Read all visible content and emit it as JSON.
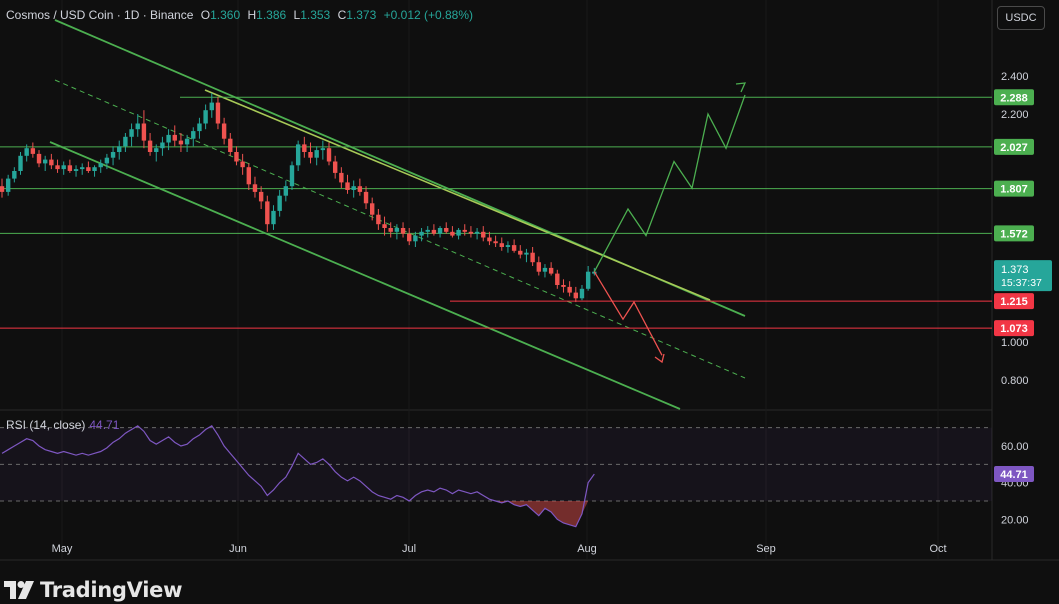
{
  "header": {
    "symbol": "Cosmos / USD Coin · 1D · Binance",
    "open_label": "O",
    "open": "1.360",
    "high_label": "H",
    "high": "1.386",
    "low_label": "L",
    "low": "1.353",
    "close_label": "C",
    "close": "1.373",
    "change": "+0.012 (+0.88%)",
    "currency": "USDC"
  },
  "rsi": {
    "label": "RSI (14, close)",
    "value": "44.71",
    "ticks": [
      "60.00",
      "40.00",
      "20.00"
    ],
    "badge": "44.71"
  },
  "brand": {
    "name": "TradingView"
  },
  "colors": {
    "background": "#0f0f0f",
    "up": "#26a69a",
    "down": "#ef5350",
    "support_line": "#f23645",
    "resistance_line": "#4caf50",
    "channel": "#4caf50",
    "rsi_line": "#7e57c2"
  },
  "chart_data": {
    "type": "candlestick",
    "ylim": [
      0.7,
      2.5
    ],
    "y_ticks": [
      "2.400",
      "2.200",
      "1.000",
      "0.800"
    ],
    "x_ticks": [
      "May",
      "Jun",
      "Jul",
      "Aug",
      "Sep",
      "Oct"
    ],
    "price_badge": {
      "value": "1.373",
      "countdown": "15:37:37"
    },
    "horizontal_levels": [
      {
        "value": 2.288,
        "label": "2.288",
        "kind": "resistance"
      },
      {
        "value": 2.027,
        "label": "2.027",
        "kind": "resistance"
      },
      {
        "value": 1.807,
        "label": "1.807",
        "kind": "resistance"
      },
      {
        "value": 1.572,
        "label": "1.572",
        "kind": "resistance"
      },
      {
        "value": 1.215,
        "label": "1.215",
        "kind": "support"
      },
      {
        "value": 1.073,
        "label": "1.073",
        "kind": "support"
      }
    ],
    "candles_ohlc": [
      [
        1.82,
        1.86,
        1.76,
        1.79
      ],
      [
        1.79,
        1.88,
        1.77,
        1.86
      ],
      [
        1.86,
        1.92,
        1.84,
        1.9
      ],
      [
        1.9,
        2.0,
        1.88,
        1.98
      ],
      [
        1.98,
        2.04,
        1.95,
        2.02
      ],
      [
        2.02,
        2.05,
        1.97,
        1.99
      ],
      [
        1.99,
        2.01,
        1.92,
        1.94
      ],
      [
        1.94,
        1.98,
        1.9,
        1.96
      ],
      [
        1.96,
        1.99,
        1.91,
        1.93
      ],
      [
        1.93,
        1.96,
        1.89,
        1.91
      ],
      [
        1.91,
        1.95,
        1.88,
        1.93
      ],
      [
        1.93,
        1.96,
        1.89,
        1.9
      ],
      [
        1.9,
        1.93,
        1.87,
        1.91
      ],
      [
        1.91,
        1.94,
        1.88,
        1.92
      ],
      [
        1.92,
        1.95,
        1.89,
        1.9
      ],
      [
        1.9,
        1.93,
        1.87,
        1.92
      ],
      [
        1.92,
        1.96,
        1.89,
        1.94
      ],
      [
        1.94,
        1.99,
        1.91,
        1.97
      ],
      [
        1.97,
        2.03,
        1.93,
        2.0
      ],
      [
        2.0,
        2.06,
        1.96,
        2.03
      ],
      [
        2.03,
        2.1,
        2.0,
        2.08
      ],
      [
        2.08,
        2.15,
        2.03,
        2.12
      ],
      [
        2.12,
        2.2,
        2.08,
        2.15
      ],
      [
        2.15,
        2.22,
        2.02,
        2.06
      ],
      [
        2.06,
        2.1,
        1.98,
        2.0
      ],
      [
        2.0,
        2.04,
        1.95,
        2.02
      ],
      [
        2.02,
        2.08,
        1.98,
        2.05
      ],
      [
        2.05,
        2.12,
        2.01,
        2.09
      ],
      [
        2.09,
        2.14,
        2.03,
        2.06
      ],
      [
        2.06,
        2.1,
        2.0,
        2.04
      ],
      [
        2.04,
        2.09,
        2.0,
        2.07
      ],
      [
        2.07,
        2.13,
        2.03,
        2.11
      ],
      [
        2.11,
        2.18,
        2.07,
        2.15
      ],
      [
        2.15,
        2.25,
        2.12,
        2.22
      ],
      [
        2.22,
        2.31,
        2.18,
        2.26
      ],
      [
        2.26,
        2.29,
        2.12,
        2.15
      ],
      [
        2.15,
        2.18,
        2.04,
        2.07
      ],
      [
        2.07,
        2.1,
        1.98,
        2.0
      ],
      [
        2.0,
        2.03,
        1.93,
        1.95
      ],
      [
        1.95,
        1.99,
        1.88,
        1.92
      ],
      [
        1.92,
        1.94,
        1.8,
        1.83
      ],
      [
        1.83,
        1.87,
        1.76,
        1.79
      ],
      [
        1.79,
        1.82,
        1.7,
        1.74
      ],
      [
        1.74,
        1.77,
        1.58,
        1.62
      ],
      [
        1.62,
        1.72,
        1.59,
        1.69
      ],
      [
        1.69,
        1.8,
        1.66,
        1.77
      ],
      [
        1.77,
        1.85,
        1.74,
        1.82
      ],
      [
        1.82,
        1.95,
        1.8,
        1.93
      ],
      [
        1.93,
        2.06,
        1.9,
        2.04
      ],
      [
        2.04,
        2.08,
        1.97,
        2.0
      ],
      [
        2.0,
        2.05,
        1.94,
        1.97
      ],
      [
        1.97,
        2.03,
        1.93,
        2.01
      ],
      [
        2.01,
        2.06,
        1.96,
        2.02
      ],
      [
        2.02,
        2.05,
        1.93,
        1.95
      ],
      [
        1.95,
        1.98,
        1.86,
        1.89
      ],
      [
        1.89,
        1.92,
        1.81,
        1.84
      ],
      [
        1.84,
        1.88,
        1.78,
        1.8
      ],
      [
        1.8,
        1.85,
        1.76,
        1.82
      ],
      [
        1.82,
        1.86,
        1.77,
        1.79
      ],
      [
        1.79,
        1.82,
        1.7,
        1.73
      ],
      [
        1.73,
        1.76,
        1.64,
        1.67
      ],
      [
        1.67,
        1.7,
        1.59,
        1.62
      ],
      [
        1.62,
        1.66,
        1.56,
        1.6
      ],
      [
        1.6,
        1.63,
        1.55,
        1.58
      ],
      [
        1.58,
        1.62,
        1.54,
        1.6
      ],
      [
        1.6,
        1.63,
        1.55,
        1.57
      ],
      [
        1.57,
        1.6,
        1.51,
        1.53
      ],
      [
        1.53,
        1.58,
        1.5,
        1.56
      ],
      [
        1.56,
        1.6,
        1.53,
        1.58
      ],
      [
        1.58,
        1.61,
        1.55,
        1.59
      ],
      [
        1.59,
        1.62,
        1.56,
        1.57
      ],
      [
        1.57,
        1.61,
        1.55,
        1.6
      ],
      [
        1.6,
        1.63,
        1.57,
        1.58
      ],
      [
        1.58,
        1.61,
        1.55,
        1.56
      ],
      [
        1.56,
        1.6,
        1.54,
        1.59
      ],
      [
        1.59,
        1.62,
        1.56,
        1.58
      ],
      [
        1.58,
        1.61,
        1.55,
        1.57
      ],
      [
        1.57,
        1.6,
        1.54,
        1.58
      ],
      [
        1.58,
        1.61,
        1.53,
        1.55
      ],
      [
        1.55,
        1.58,
        1.51,
        1.53
      ],
      [
        1.53,
        1.56,
        1.5,
        1.52
      ],
      [
        1.52,
        1.55,
        1.48,
        1.5
      ],
      [
        1.5,
        1.53,
        1.47,
        1.51
      ],
      [
        1.51,
        1.54,
        1.47,
        1.48
      ],
      [
        1.48,
        1.51,
        1.44,
        1.46
      ],
      [
        1.46,
        1.49,
        1.42,
        1.47
      ],
      [
        1.47,
        1.5,
        1.4,
        1.42
      ],
      [
        1.42,
        1.45,
        1.35,
        1.37
      ],
      [
        1.37,
        1.41,
        1.34,
        1.39
      ],
      [
        1.39,
        1.42,
        1.35,
        1.36
      ],
      [
        1.36,
        1.38,
        1.28,
        1.3
      ],
      [
        1.3,
        1.33,
        1.26,
        1.29
      ],
      [
        1.29,
        1.32,
        1.24,
        1.26
      ],
      [
        1.26,
        1.29,
        1.21,
        1.23
      ],
      [
        1.23,
        1.3,
        1.22,
        1.28
      ],
      [
        1.28,
        1.4,
        1.27,
        1.37
      ],
      [
        1.36,
        1.39,
        1.35,
        1.37
      ]
    ],
    "projection_bullish": [
      1.37,
      1.7,
      1.56,
      1.95,
      1.81,
      2.2,
      2.02,
      2.3
    ],
    "projection_bearish": [
      1.37,
      1.12,
      1.21,
      0.93
    ],
    "rsi_values": [
      56,
      58,
      60,
      62,
      64,
      63,
      60,
      58,
      57,
      56,
      57,
      56,
      55,
      56,
      55,
      56,
      57,
      59,
      62,
      64,
      67,
      69,
      71,
      68,
      63,
      61,
      63,
      65,
      62,
      60,
      61,
      64,
      66,
      69,
      71,
      66,
      60,
      56,
      52,
      48,
      44,
      41,
      38,
      33,
      36,
      40,
      43,
      49,
      56,
      53,
      50,
      51,
      53,
      50,
      46,
      43,
      41,
      43,
      41,
      38,
      35,
      33,
      32,
      31,
      33,
      32,
      30,
      33,
      35,
      36,
      35,
      37,
      36,
      34,
      36,
      35,
      34,
      35,
      33,
      31,
      30,
      29,
      30,
      28,
      27,
      28,
      25,
      22,
      26,
      24,
      20,
      18,
      17,
      16,
      23,
      40,
      44.71
    ]
  }
}
